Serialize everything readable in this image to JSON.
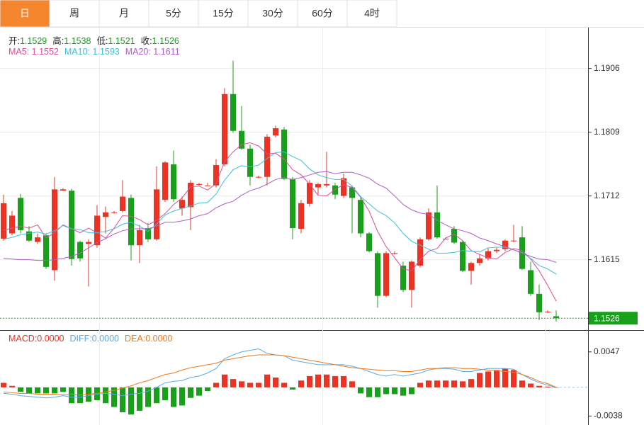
{
  "tabs": [
    "日",
    "周",
    "月",
    "5分",
    "15分",
    "30分",
    "60分",
    "4时"
  ],
  "active_tab": 0,
  "chart_data": [
    {
      "type": "candlestick",
      "up_color": "#eb3223",
      "down_color": "#19a01a",
      "ylim": [
        1.1509,
        1.1967
      ],
      "yticks": [
        1.1906,
        1.1809,
        1.1712,
        1.1615
      ],
      "grid": true,
      "ohlc_labels": [
        "开:",
        "高:",
        "低:",
        "收:"
      ],
      "open": [
        1.1647,
        1.1655,
        1.1709,
        1.1658,
        1.1642,
        1.1652,
        1.1599,
        1.172,
        1.172,
        1.1642,
        1.1639,
        1.1637,
        1.168,
        1.1686,
        1.1689,
        1.1709,
        1.1637,
        1.1663,
        1.1646,
        1.1706,
        1.176,
        1.1693,
        1.1695,
        1.173,
        1.1728,
        1.1728,
        1.176,
        1.1867,
        1.1811,
        1.1784,
        1.1741,
        1.1741,
        1.1804,
        1.1813,
        1.1738,
        1.1662,
        1.17,
        1.1725,
        1.1728,
        1.1728,
        1.1712,
        1.1725,
        1.1706,
        1.1655,
        1.1625,
        1.156,
        1.1625,
        1.1606,
        1.1569,
        1.1606,
        1.1646,
        1.1687,
        1.1647,
        1.1662,
        1.1642,
        1.1598,
        1.161,
        1.1617,
        1.1628,
        1.1631,
        1.1644,
        1.1649,
        1.1599,
        1.1563,
        1.1536,
        1.1529
      ],
      "high": [
        1.1714,
        1.1689,
        1.1715,
        1.1666,
        1.1655,
        1.1655,
        1.1741,
        1.1724,
        1.1723,
        1.1644,
        1.1646,
        1.1698,
        1.1696,
        1.1689,
        1.1736,
        1.1714,
        1.1668,
        1.1671,
        1.1757,
        1.1765,
        1.1781,
        1.1711,
        1.1736,
        1.1732,
        1.1732,
        1.1768,
        1.1876,
        1.1918,
        1.1849,
        1.179,
        1.1743,
        1.1806,
        1.1819,
        1.1817,
        1.1741,
        1.1706,
        1.1736,
        1.1732,
        1.1779,
        1.1732,
        1.1746,
        1.1728,
        1.1709,
        1.1657,
        1.1628,
        1.1628,
        1.1628,
        1.1612,
        1.1614,
        1.1649,
        1.1693,
        1.1728,
        1.1649,
        1.1666,
        1.1644,
        1.1612,
        1.1623,
        1.1633,
        1.1633,
        1.1646,
        1.1668,
        1.1666,
        1.1612,
        1.1577,
        1.1538,
        1.1538
      ],
      "low": [
        1.1644,
        1.1652,
        1.1655,
        1.1642,
        1.1639,
        1.1601,
        1.1583,
        1.172,
        1.1606,
        1.1612,
        1.1574,
        1.1633,
        1.1655,
        1.1685,
        1.1687,
        1.1614,
        1.161,
        1.1642,
        1.1644,
        1.1703,
        1.1703,
        1.1682,
        1.166,
        1.1728,
        1.1728,
        1.1725,
        1.1757,
        1.1808,
        1.1782,
        1.1728,
        1.1739,
        1.1728,
        1.1801,
        1.1736,
        1.1646,
        1.1655,
        1.1696,
        1.1714,
        1.1725,
        1.1707,
        1.1709,
        1.1655,
        1.1649,
        1.1626,
        1.1542,
        1.1558,
        1.1623,
        1.1566,
        1.1542,
        1.1603,
        1.1644,
        1.1647,
        1.1646,
        1.1639,
        1.1596,
        1.1577,
        1.1606,
        1.1614,
        1.1625,
        1.1628,
        1.1642,
        1.1599,
        1.156,
        1.1523,
        1.1534,
        1.1521
      ],
      "close": [
        1.1701,
        1.1682,
        1.166,
        1.1644,
        1.1649,
        1.1604,
        1.1722,
        1.1722,
        1.1616,
        1.1617,
        1.1642,
        1.1682,
        1.1687,
        1.1687,
        1.1711,
        1.1637,
        1.166,
        1.1646,
        1.1722,
        1.1763,
        1.1707,
        1.1706,
        1.1732,
        1.173,
        1.1728,
        1.1759,
        1.1867,
        1.1811,
        1.1784,
        1.1741,
        1.1741,
        1.1802,
        1.1815,
        1.1738,
        1.1663,
        1.1701,
        1.1732,
        1.173,
        1.173,
        1.1714,
        1.1739,
        1.1709,
        1.1655,
        1.1628,
        1.156,
        1.1625,
        1.1625,
        1.1569,
        1.1612,
        1.1646,
        1.1687,
        1.1649,
        1.1647,
        1.1641,
        1.1598,
        1.161,
        1.1617,
        1.1628,
        1.163,
        1.1644,
        1.1644,
        1.1601,
        1.1563,
        1.1535,
        1.1536,
        1.1526
      ],
      "series": [
        {
          "name": "MA5: ",
          "color": "#de4b9c",
          "values": [
            1.166,
            1.1663,
            1.1666,
            1.1663,
            1.1668,
            1.1648,
            1.1656,
            1.1668,
            1.1662,
            1.1656,
            1.1663,
            1.1656,
            1.1648,
            1.1663,
            1.1682,
            1.1681,
            1.1676,
            1.1668,
            1.1675,
            1.1685,
            1.1699,
            1.1709,
            1.1726,
            1.1727,
            1.1721,
            1.1731,
            1.1764,
            1.1779,
            1.179,
            1.1793,
            1.1788,
            1.1776,
            1.1777,
            1.1768,
            1.1752,
            1.1744,
            1.173,
            1.1713,
            1.1712,
            1.1722,
            1.1729,
            1.1725,
            1.171,
            1.1689,
            1.1658,
            1.1635,
            1.1618,
            1.1601,
            1.1598,
            1.1615,
            1.1628,
            1.1632,
            1.1648,
            1.1654,
            1.1644,
            1.1629,
            1.1623,
            1.1618,
            1.1616,
            1.1626,
            1.1632,
            1.1629,
            1.1616,
            1.1598,
            1.1576,
            1.1552
          ]
        },
        {
          "name": "MA10: ",
          "color": "#3ec0d8",
          "values": [
            1.1646,
            1.1649,
            1.1653,
            1.1655,
            1.1657,
            1.1654,
            1.1659,
            1.1667,
            1.1662,
            1.1661,
            1.1656,
            1.1656,
            1.1658,
            1.1662,
            1.1669,
            1.1672,
            1.1666,
            1.1658,
            1.1669,
            1.1683,
            1.1689,
            1.1693,
            1.1697,
            1.1701,
            1.1702,
            1.1715,
            1.1736,
            1.1752,
            1.1758,
            1.1756,
            1.1759,
            1.1769,
            1.1778,
            1.1779,
            1.1772,
            1.1766,
            1.1753,
            1.1744,
            1.174,
            1.1737,
            1.1737,
            1.1727,
            1.1711,
            1.17,
            1.1689,
            1.1682,
            1.1671,
            1.1655,
            1.1643,
            1.1637,
            1.1631,
            1.1625,
            1.1625,
            1.1626,
            1.1629,
            1.1628,
            1.1627,
            1.1633,
            1.1634,
            1.1634,
            1.163,
            1.1626,
            1.1617,
            1.1606,
            1.1601,
            1.1593
          ]
        },
        {
          "name": "MA20: ",
          "color": "#b05cc6",
          "values": [
            1.1617,
            1.1616,
            1.1615,
            1.1615,
            1.1614,
            1.1614,
            1.1615,
            1.1617,
            1.162,
            1.1625,
            1.1633,
            1.1641,
            1.1647,
            1.1654,
            1.1659,
            1.1662,
            1.1662,
            1.1662,
            1.1666,
            1.1672,
            1.1672,
            1.1674,
            1.1677,
            1.1682,
            1.1685,
            1.1694,
            1.17,
            1.1704,
            1.1713,
            1.172,
            1.1724,
            1.173,
            1.1737,
            1.174,
            1.1737,
            1.174,
            1.1744,
            1.1748,
            1.1749,
            1.1746,
            1.1748,
            1.1748,
            1.1744,
            1.1739,
            1.173,
            1.1724,
            1.1712,
            1.1699,
            1.1691,
            1.1686,
            1.1684,
            1.1675,
            1.1668,
            1.1662,
            1.1659,
            1.1655,
            1.1648,
            1.1644,
            1.1639,
            1.1635,
            1.163,
            1.1625,
            1.162,
            1.1616,
            1.1615,
            1.1611
          ]
        }
      ]
    },
    {
      "type": "macd",
      "ylim": [
        -0.0048,
        0.0074
      ],
      "yticks": [
        0.0047,
        -0.0038
      ],
      "bars": {
        "name": "MACD:",
        "last_label": "0.0000",
        "color": "#eb3223",
        "up_color": "#eb3223",
        "down_color": "#19a01a",
        "values": [
          0.0006,
          0.0002,
          -0.0006,
          -0.0008,
          -0.0008,
          -0.0008,
          -0.0008,
          -0.0006,
          -0.0021,
          -0.0021,
          -0.0019,
          -0.0017,
          -0.0021,
          -0.0026,
          -0.0033,
          -0.0036,
          -0.0031,
          -0.0026,
          -0.0021,
          -0.0017,
          -0.0026,
          -0.0024,
          -0.0014,
          -0.0011,
          -0.0005,
          0.0006,
          0.0017,
          0.0011,
          0.0008,
          0.0006,
          0.0006,
          0.0017,
          0.0013,
          0.0006,
          -0.0003,
          0.0009,
          0.0015,
          0.0017,
          0.0017,
          0.0015,
          0.0015,
          0.0008,
          -0.0008,
          -0.0013,
          -0.0013,
          -0.0009,
          -0.0009,
          -0.0011,
          -0.0009,
          0.0006,
          0.0009,
          0.0009,
          0.0009,
          0.0009,
          0.0008,
          0.0011,
          0.0019,
          0.0021,
          0.0023,
          0.0025,
          0.0023,
          0.0009,
          0.0005,
          0.0002,
          0.0001,
          0
        ]
      },
      "series": [
        {
          "name": "DIFF:",
          "last_label": "0.0000",
          "color": "#5aaae6",
          "values": [
            -0.0008,
            -0.0009,
            -0.0011,
            -0.0012,
            -0.0013,
            -0.0014,
            -0.0013,
            -0.0011,
            -0.0013,
            -0.0013,
            -0.0011,
            -0.0009,
            -0.0008,
            -0.0009,
            -0.0011,
            -0.0009,
            -0.0008,
            -0.0005,
            0,
            0.0006,
            0.0008,
            0.0009,
            0.0013,
            0.0015,
            0.0019,
            0.0025,
            0.0038,
            0.0043,
            0.0047,
            0.0049,
            0.0051,
            0.0045,
            0.0043,
            0.0042,
            0.0036,
            0.0034,
            0.0032,
            0.003,
            0.003,
            0.003,
            0.003,
            0.0028,
            0.0025,
            0.0021,
            0.0017,
            0.0015,
            0.0017,
            0.0015,
            0.0017,
            0.0019,
            0.0023,
            0.0025,
            0.0025,
            0.0024,
            0.0021,
            0.0021,
            0.0023,
            0.0025,
            0.0025,
            0.0025,
            0.0024,
            0.0017,
            0.0011,
            0.0006,
            0.0003,
            0
          ]
        },
        {
          "name": "DEA:",
          "last_label": "0.0000",
          "color": "#f07a1a",
          "values": [
            -0.0006,
            -0.0007,
            -0.0008,
            -0.0008,
            -0.0009,
            -0.0009,
            -0.0009,
            -0.001,
            -0.001,
            -0.001,
            -0.0009,
            -0.0008,
            -0.0006,
            -0.0004,
            -0.0001,
            0.0002,
            0.0006,
            0.0009,
            0.0013,
            0.0017,
            0.0019,
            0.0023,
            0.0026,
            0.0028,
            0.003,
            0.0032,
            0.0036,
            0.0038,
            0.004,
            0.0042,
            0.0043,
            0.0043,
            0.0043,
            0.0042,
            0.004,
            0.0038,
            0.0036,
            0.0034,
            0.0032,
            0.003,
            0.0028,
            0.0026,
            0.0025,
            0.0024,
            0.0023,
            0.0022,
            0.0022,
            0.0021,
            0.0021,
            0.0023,
            0.0025,
            0.0025,
            0.0026,
            0.0026,
            0.0025,
            0.0025,
            0.0024,
            0.0023,
            0.0022,
            0.0021,
            0.002,
            0.0017,
            0.0013,
            0.0008,
            0.0005,
            0
          ]
        }
      ]
    }
  ]
}
